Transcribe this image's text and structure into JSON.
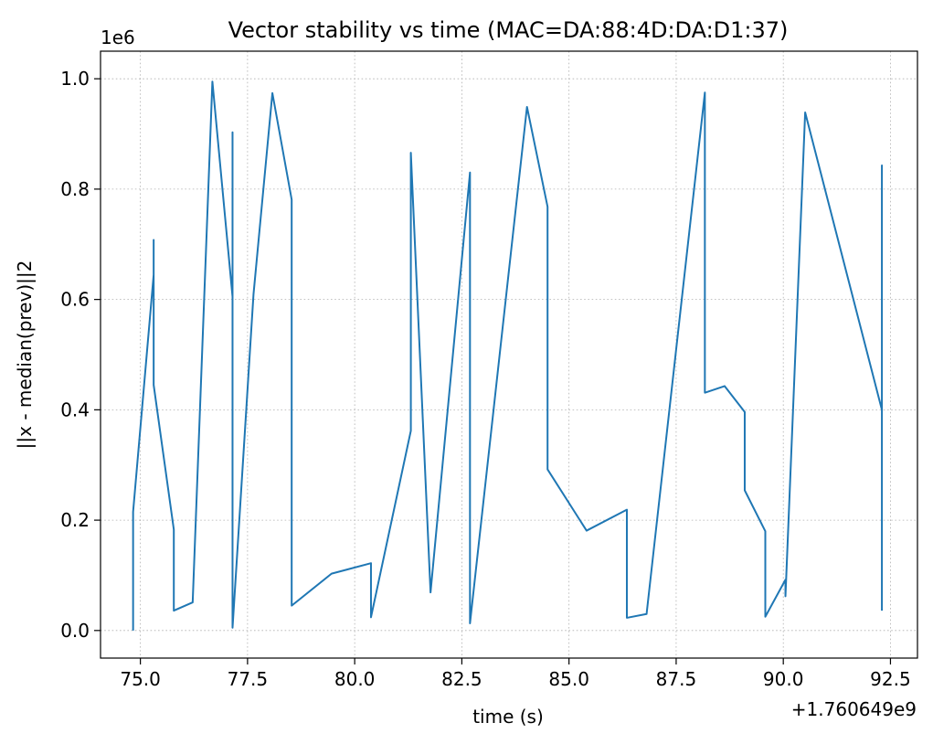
{
  "chart_data": {
    "type": "line",
    "title": "Vector stability vs time (MAC=DA:88:4D:DA:D1:37)",
    "xlabel": "time (s)",
    "ylabel": "||x - median(prev)||2",
    "x_offset_label": "+1.760649e9",
    "y_scale_label": "1e6",
    "xlim": [
      74.07,
      93.13
    ],
    "ylim": [
      -0.05,
      1.05
    ],
    "xticks": [
      75.0,
      77.5,
      80.0,
      82.5,
      85.0,
      87.5,
      90.0,
      92.5
    ],
    "xtick_labels": [
      "75.0",
      "77.5",
      "80.0",
      "82.5",
      "85.0",
      "87.5",
      "90.0",
      "92.5"
    ],
    "yticks": [
      0.0,
      0.2,
      0.4,
      0.6,
      0.8,
      1.0
    ],
    "ytick_labels": [
      "0.0",
      "0.2",
      "0.4",
      "0.6",
      "0.8",
      "1.0"
    ],
    "grid": true,
    "color": "#1f77b4",
    "series": [
      {
        "x": [
          74.83,
          74.83,
          75.31,
          75.31,
          75.31,
          75.78,
          75.78,
          76.22,
          76.68,
          77.15,
          77.15,
          77.15,
          77.64,
          78.08,
          78.53,
          78.53,
          79.46,
          80.38,
          80.38,
          81.31,
          81.31,
          81.77,
          82.69,
          82.69,
          84.02,
          84.5,
          84.5,
          85.41,
          86.35,
          86.35,
          86.81,
          88.17,
          88.17,
          88.63,
          89.1,
          89.1,
          89.58,
          89.58,
          90.05,
          90.05,
          90.51,
          92.3,
          92.3,
          92.3
        ],
        "y": [
          0.0,
          0.215,
          0.645,
          0.708,
          0.445,
          0.183,
          0.036,
          0.051,
          0.995,
          0.605,
          0.903,
          0.005,
          0.61,
          0.974,
          0.781,
          0.045,
          0.103,
          0.122,
          0.024,
          0.362,
          0.866,
          0.069,
          0.83,
          0.013,
          0.949,
          0.768,
          0.292,
          0.181,
          0.219,
          0.023,
          0.03,
          0.975,
          0.431,
          0.443,
          0.396,
          0.254,
          0.18,
          0.025,
          0.092,
          0.062,
          0.939,
          0.4,
          0.843,
          0.036
        ]
      }
    ]
  }
}
